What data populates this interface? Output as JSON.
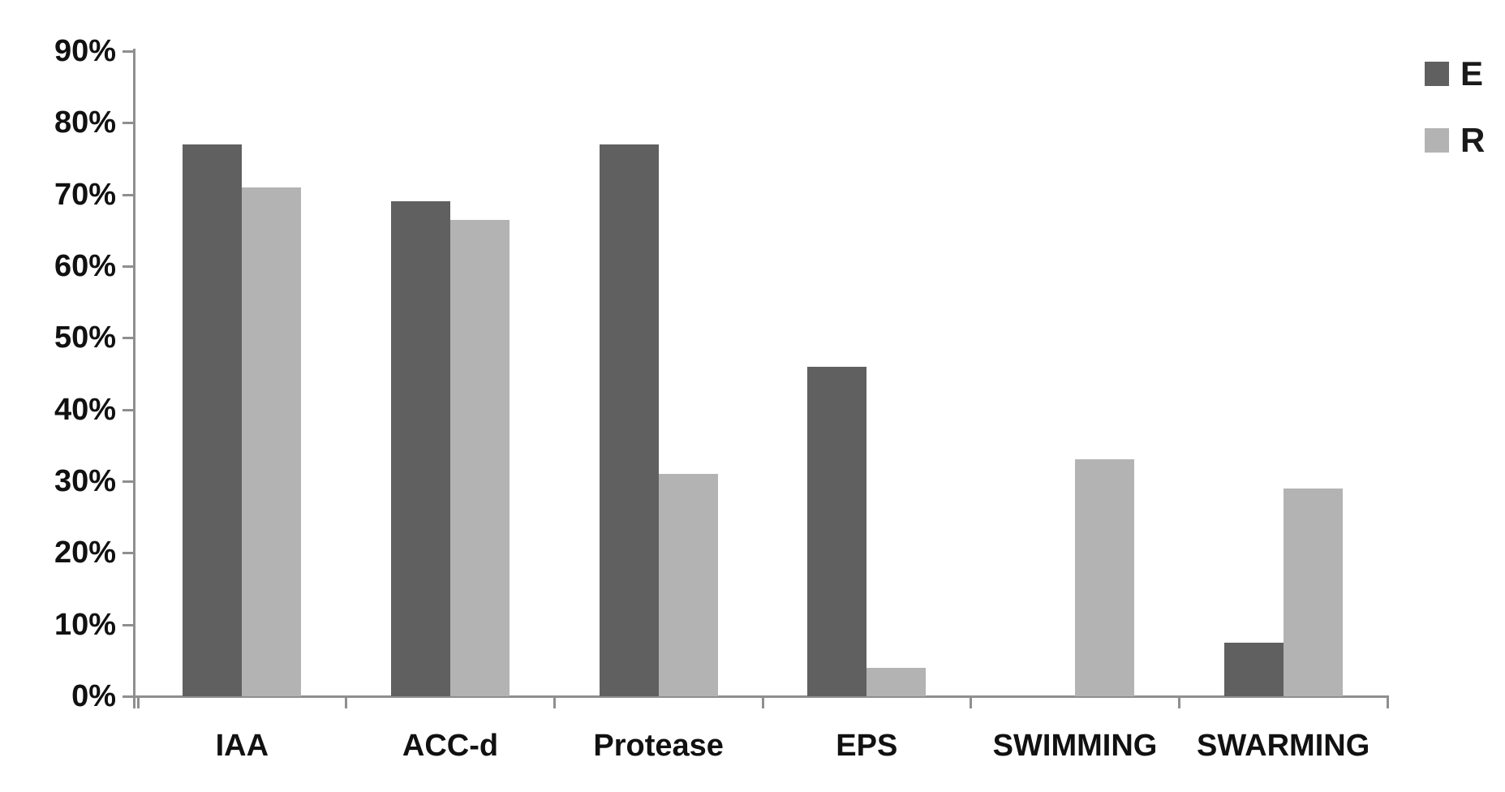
{
  "chart_data": {
    "type": "bar",
    "title": "",
    "xlabel": "",
    "ylabel": "",
    "categories": [
      "IAA",
      "ACC-d",
      "Protease",
      "EPS",
      "SWIMMING",
      "SWARMING"
    ],
    "series": [
      {
        "name": "E",
        "color": "#606060",
        "values": [
          77,
          69,
          77,
          46,
          0,
          7.5
        ]
      },
      {
        "name": "R",
        "color": "#b3b3b3",
        "values": [
          71,
          66.5,
          31,
          4,
          33,
          29
        ]
      }
    ],
    "ylim": [
      0,
      90
    ],
    "y_tick_step": 10,
    "y_tick_labels": [
      "0%",
      "10%",
      "20%",
      "30%",
      "40%",
      "50%",
      "60%",
      "70%",
      "80%",
      "90%"
    ],
    "grid": "off",
    "legend_position": "top-right",
    "axis_color": "#8f8f8f",
    "text_color": "#111111",
    "background_color": "#ffffff"
  }
}
